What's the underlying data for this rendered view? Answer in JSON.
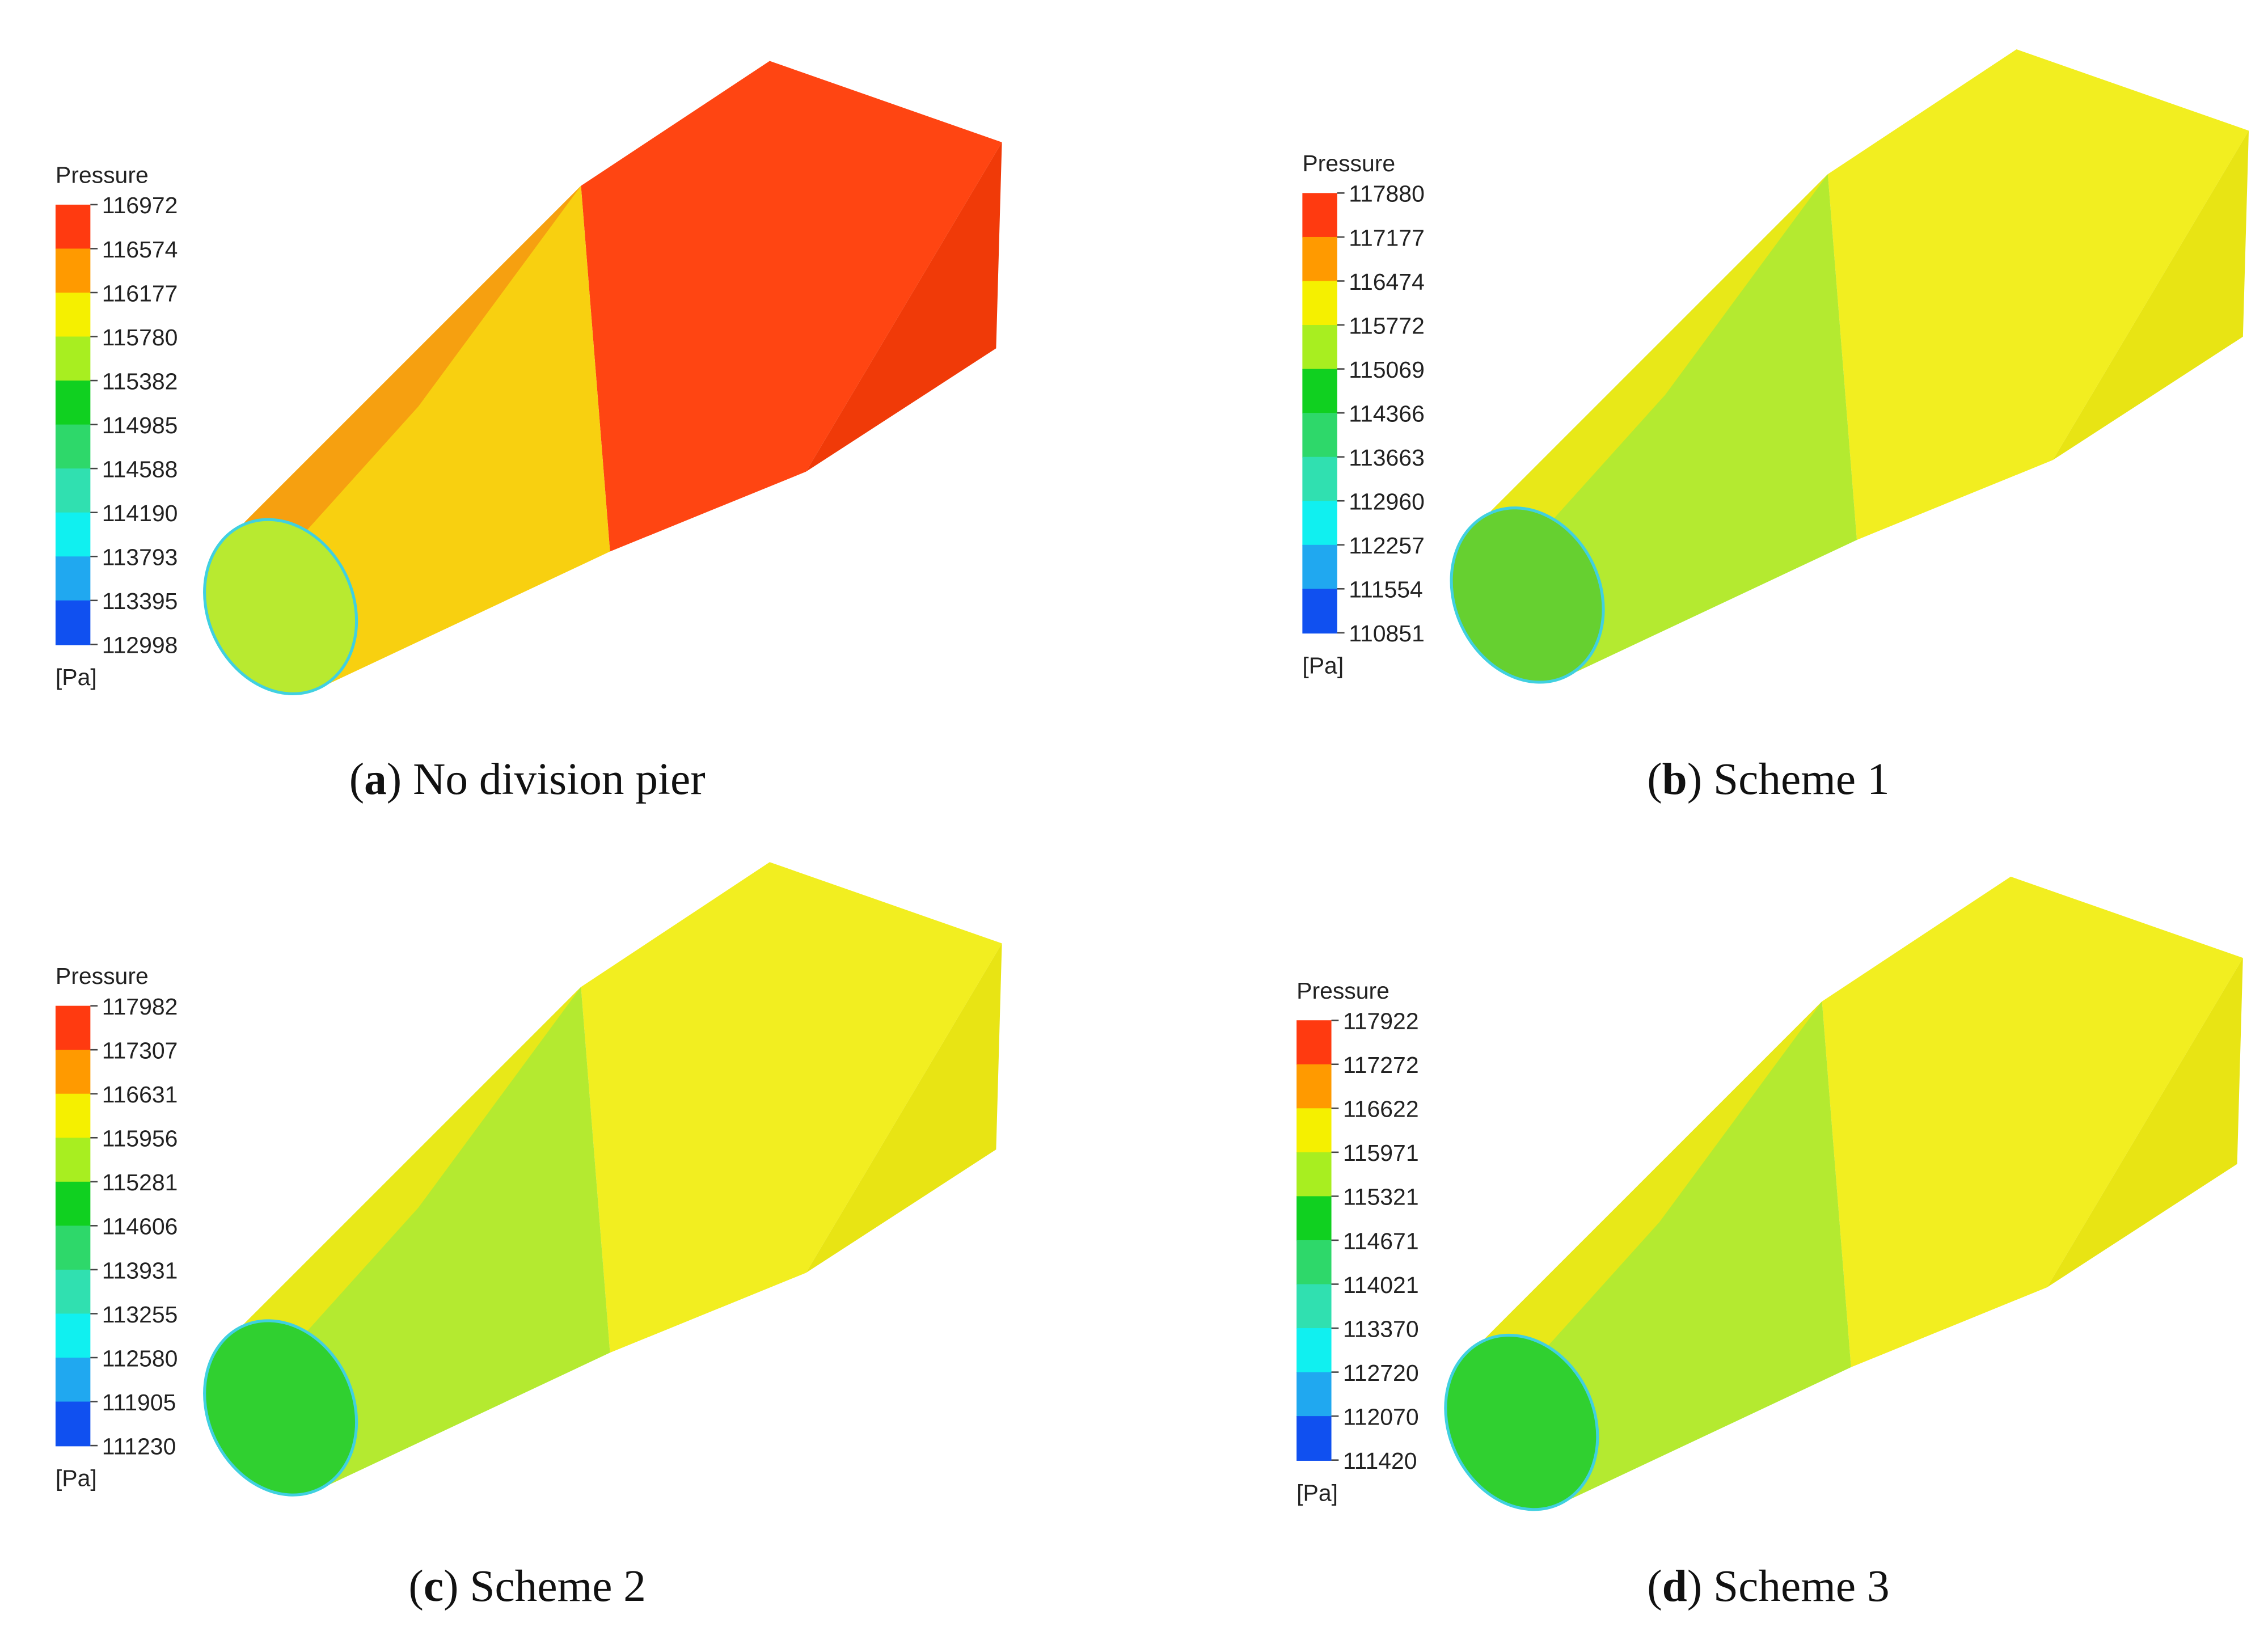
{
  "panels": [
    {
      "legend": {
        "title": "Pressure",
        "unit": "[Pa]",
        "ticks": [
          116972,
          116574,
          116177,
          115780,
          115382,
          114985,
          114588,
          114190,
          113793,
          113395,
          112998
        ]
      },
      "caption": [
        "(",
        "a",
        ")",
        " No division pier"
      ]
    },
    {
      "legend": {
        "title": "Pressure",
        "unit": "[Pa]",
        "ticks": [
          117880,
          117177,
          116474,
          115772,
          115069,
          114366,
          113663,
          112960,
          112257,
          111554,
          110851
        ]
      },
      "caption": [
        "(",
        "b",
        ")",
        " Scheme 1"
      ]
    },
    {
      "legend": {
        "title": "Pressure",
        "unit": "[Pa]",
        "ticks": [
          117982,
          117307,
          116631,
          115956,
          115281,
          114606,
          113931,
          113255,
          112580,
          111905,
          111230
        ]
      },
      "caption": [
        "(",
        "c",
        ")",
        " Scheme 2"
      ]
    },
    {
      "legend": {
        "title": "Pressure",
        "unit": "[Pa]",
        "ticks": [
          117922,
          117272,
          116622,
          115971,
          115321,
          114671,
          114021,
          113370,
          112720,
          112070,
          111420
        ]
      },
      "caption": [
        "(",
        "d",
        ")",
        " Scheme 3"
      ]
    }
  ],
  "legend_colors": [
    "#ff3a10",
    "#ff9a00",
    "#f5f000",
    "#a8ee20",
    "#10d020",
    "#2ed86a",
    "#30e0b0",
    "#10f0f0",
    "#20a8f0",
    "#1050f0"
  ]
}
